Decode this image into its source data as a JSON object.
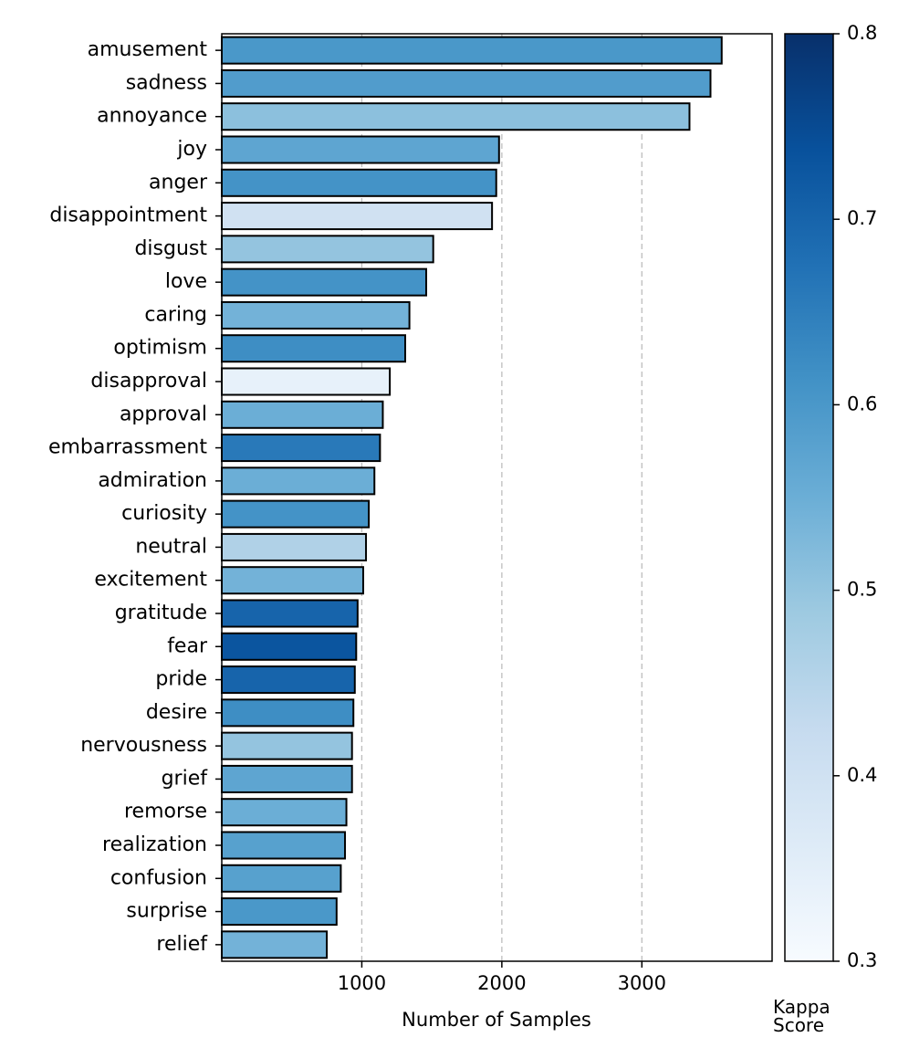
{
  "chart_data": {
    "type": "bar",
    "orientation": "horizontal",
    "title": "",
    "xlabel": "Number of Samples",
    "ylabel": "",
    "xlim": [
      0,
      3930
    ],
    "xticks": [
      1000,
      2000,
      3000
    ],
    "xtick_labels": [
      "1000",
      "2000",
      "3000"
    ],
    "grid": "vertical dashed",
    "categories": [
      "amusement",
      "sadness",
      "annoyance",
      "joy",
      "anger",
      "disappointment",
      "disgust",
      "love",
      "caring",
      "optimism",
      "disapproval",
      "approval",
      "embarrassment",
      "admiration",
      "curiosity",
      "neutral",
      "excitement",
      "gratitude",
      "fear",
      "pride",
      "desire",
      "nervousness",
      "grief",
      "remorse",
      "realization",
      "confusion",
      "surprise",
      "relief"
    ],
    "values": [
      3570,
      3490,
      3340,
      1980,
      1960,
      1930,
      1510,
      1460,
      1340,
      1310,
      1200,
      1150,
      1130,
      1090,
      1050,
      1030,
      1010,
      970,
      960,
      950,
      940,
      930,
      930,
      890,
      880,
      850,
      820,
      750
    ],
    "kappa_scores": [
      0.6,
      0.59,
      0.51,
      0.57,
      0.61,
      0.4,
      0.5,
      0.61,
      0.54,
      0.62,
      0.34,
      0.55,
      0.66,
      0.55,
      0.61,
      0.46,
      0.54,
      0.7,
      0.73,
      0.7,
      0.62,
      0.5,
      0.57,
      0.55,
      0.58,
      0.58,
      0.6,
      0.54
    ],
    "colorbar": {
      "label_line1": "Kappa",
      "label_line2": "Score",
      "range": [
        0.3,
        0.8
      ],
      "ticks": [
        0.3,
        0.4,
        0.5,
        0.6,
        0.7,
        0.8
      ],
      "tick_labels": [
        "0.3",
        "0.4",
        "0.5",
        "0.6",
        "0.7",
        "0.8"
      ],
      "colormap": "Blues"
    }
  }
}
